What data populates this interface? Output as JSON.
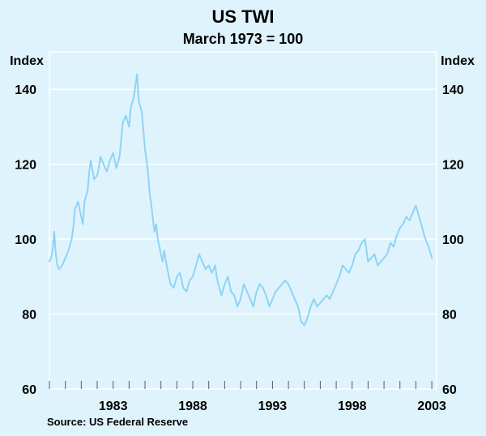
{
  "chart_data": {
    "type": "line",
    "title": "US TWI",
    "subtitle": "March 1973 = 100",
    "ylabel_left": "Index",
    "ylabel_right": "Index",
    "source": "Source: US Federal Reserve",
    "ylim": [
      60,
      150
    ],
    "xlim": [
      1979.0,
      2003.3
    ],
    "y_ticks": [
      60,
      80,
      100,
      120,
      140
    ],
    "x_ticks": [
      1983,
      1988,
      1993,
      1998,
      2003
    ],
    "grid": true,
    "series_color": "#8dd4f5",
    "series": [
      {
        "x": [
          1979.0,
          1979.1,
          1979.2,
          1979.3,
          1979.4,
          1979.5,
          1979.6,
          1979.8,
          1980.0,
          1980.2,
          1980.4,
          1980.5,
          1980.6,
          1980.8,
          1981.0,
          1981.1,
          1981.2,
          1981.4,
          1981.5,
          1981.6,
          1981.8,
          1982.0,
          1982.1,
          1982.2,
          1982.4,
          1982.6,
          1982.8,
          1983.0,
          1983.2,
          1983.4,
          1983.6,
          1983.8,
          1984.0,
          1984.1,
          1984.3,
          1984.5,
          1984.6,
          1984.8,
          1984.9,
          1985.0,
          1985.1,
          1985.2,
          1985.3,
          1985.4,
          1985.5,
          1985.6,
          1985.7,
          1985.8,
          1986.0,
          1986.1,
          1986.2,
          1986.4,
          1986.6,
          1986.8,
          1987.0,
          1987.2,
          1987.4,
          1987.6,
          1987.8,
          1988.0,
          1988.2,
          1988.4,
          1988.6,
          1988.8,
          1989.0,
          1989.2,
          1989.4,
          1989.5,
          1989.6,
          1989.8,
          1990.0,
          1990.2,
          1990.4,
          1990.6,
          1990.8,
          1991.0,
          1991.2,
          1991.4,
          1991.6,
          1991.8,
          1992.0,
          1992.2,
          1992.4,
          1992.6,
          1992.8,
          1993.0,
          1993.2,
          1993.4,
          1993.6,
          1993.8,
          1994.0,
          1994.2,
          1994.4,
          1994.6,
          1994.8,
          1995.0,
          1995.2,
          1995.4,
          1995.6,
          1995.8,
          1996.0,
          1996.2,
          1996.4,
          1996.6,
          1996.8,
          1997.0,
          1997.2,
          1997.4,
          1997.6,
          1997.8,
          1998.0,
          1998.2,
          1998.4,
          1998.6,
          1998.8,
          1999.0,
          1999.2,
          1999.4,
          1999.6,
          1999.8,
          2000.0,
          2000.2,
          2000.4,
          2000.6,
          2000.8,
          2001.0,
          2001.2,
          2001.4,
          2001.6,
          2001.8,
          2002.0,
          2002.2,
          2002.4,
          2002.6,
          2002.8,
          2003.0
        ],
        "y": [
          94,
          95,
          97,
          102,
          96,
          93,
          92,
          93,
          95,
          97,
          100,
          103,
          108,
          110,
          106,
          104,
          110,
          113,
          118,
          121,
          116,
          117,
          119,
          122,
          120,
          118,
          121,
          123,
          119,
          122,
          131,
          133,
          130,
          135,
          138,
          144,
          137,
          134,
          129,
          124,
          121,
          117,
          112,
          109,
          105,
          102,
          104,
          100,
          96,
          94,
          97,
          92,
          88,
          87,
          90,
          91,
          87,
          86,
          89,
          90,
          93,
          96,
          94,
          92,
          93,
          91,
          93,
          90,
          88,
          85,
          88,
          90,
          86,
          85,
          82,
          84,
          88,
          86,
          84,
          82,
          86,
          88,
          87,
          85,
          82,
          84,
          86,
          87,
          88,
          89,
          88,
          86,
          84,
          82,
          78,
          77,
          79,
          82,
          84,
          82,
          83,
          84,
          85,
          84,
          86,
          88,
          90,
          93,
          92,
          91,
          93,
          96,
          97,
          99,
          100,
          94,
          95,
          96,
          93,
          94,
          95,
          96,
          99,
          98,
          101,
          103,
          104,
          106,
          105,
          107,
          109,
          106,
          103,
          100,
          98,
          95
        ]
      }
    ]
  }
}
